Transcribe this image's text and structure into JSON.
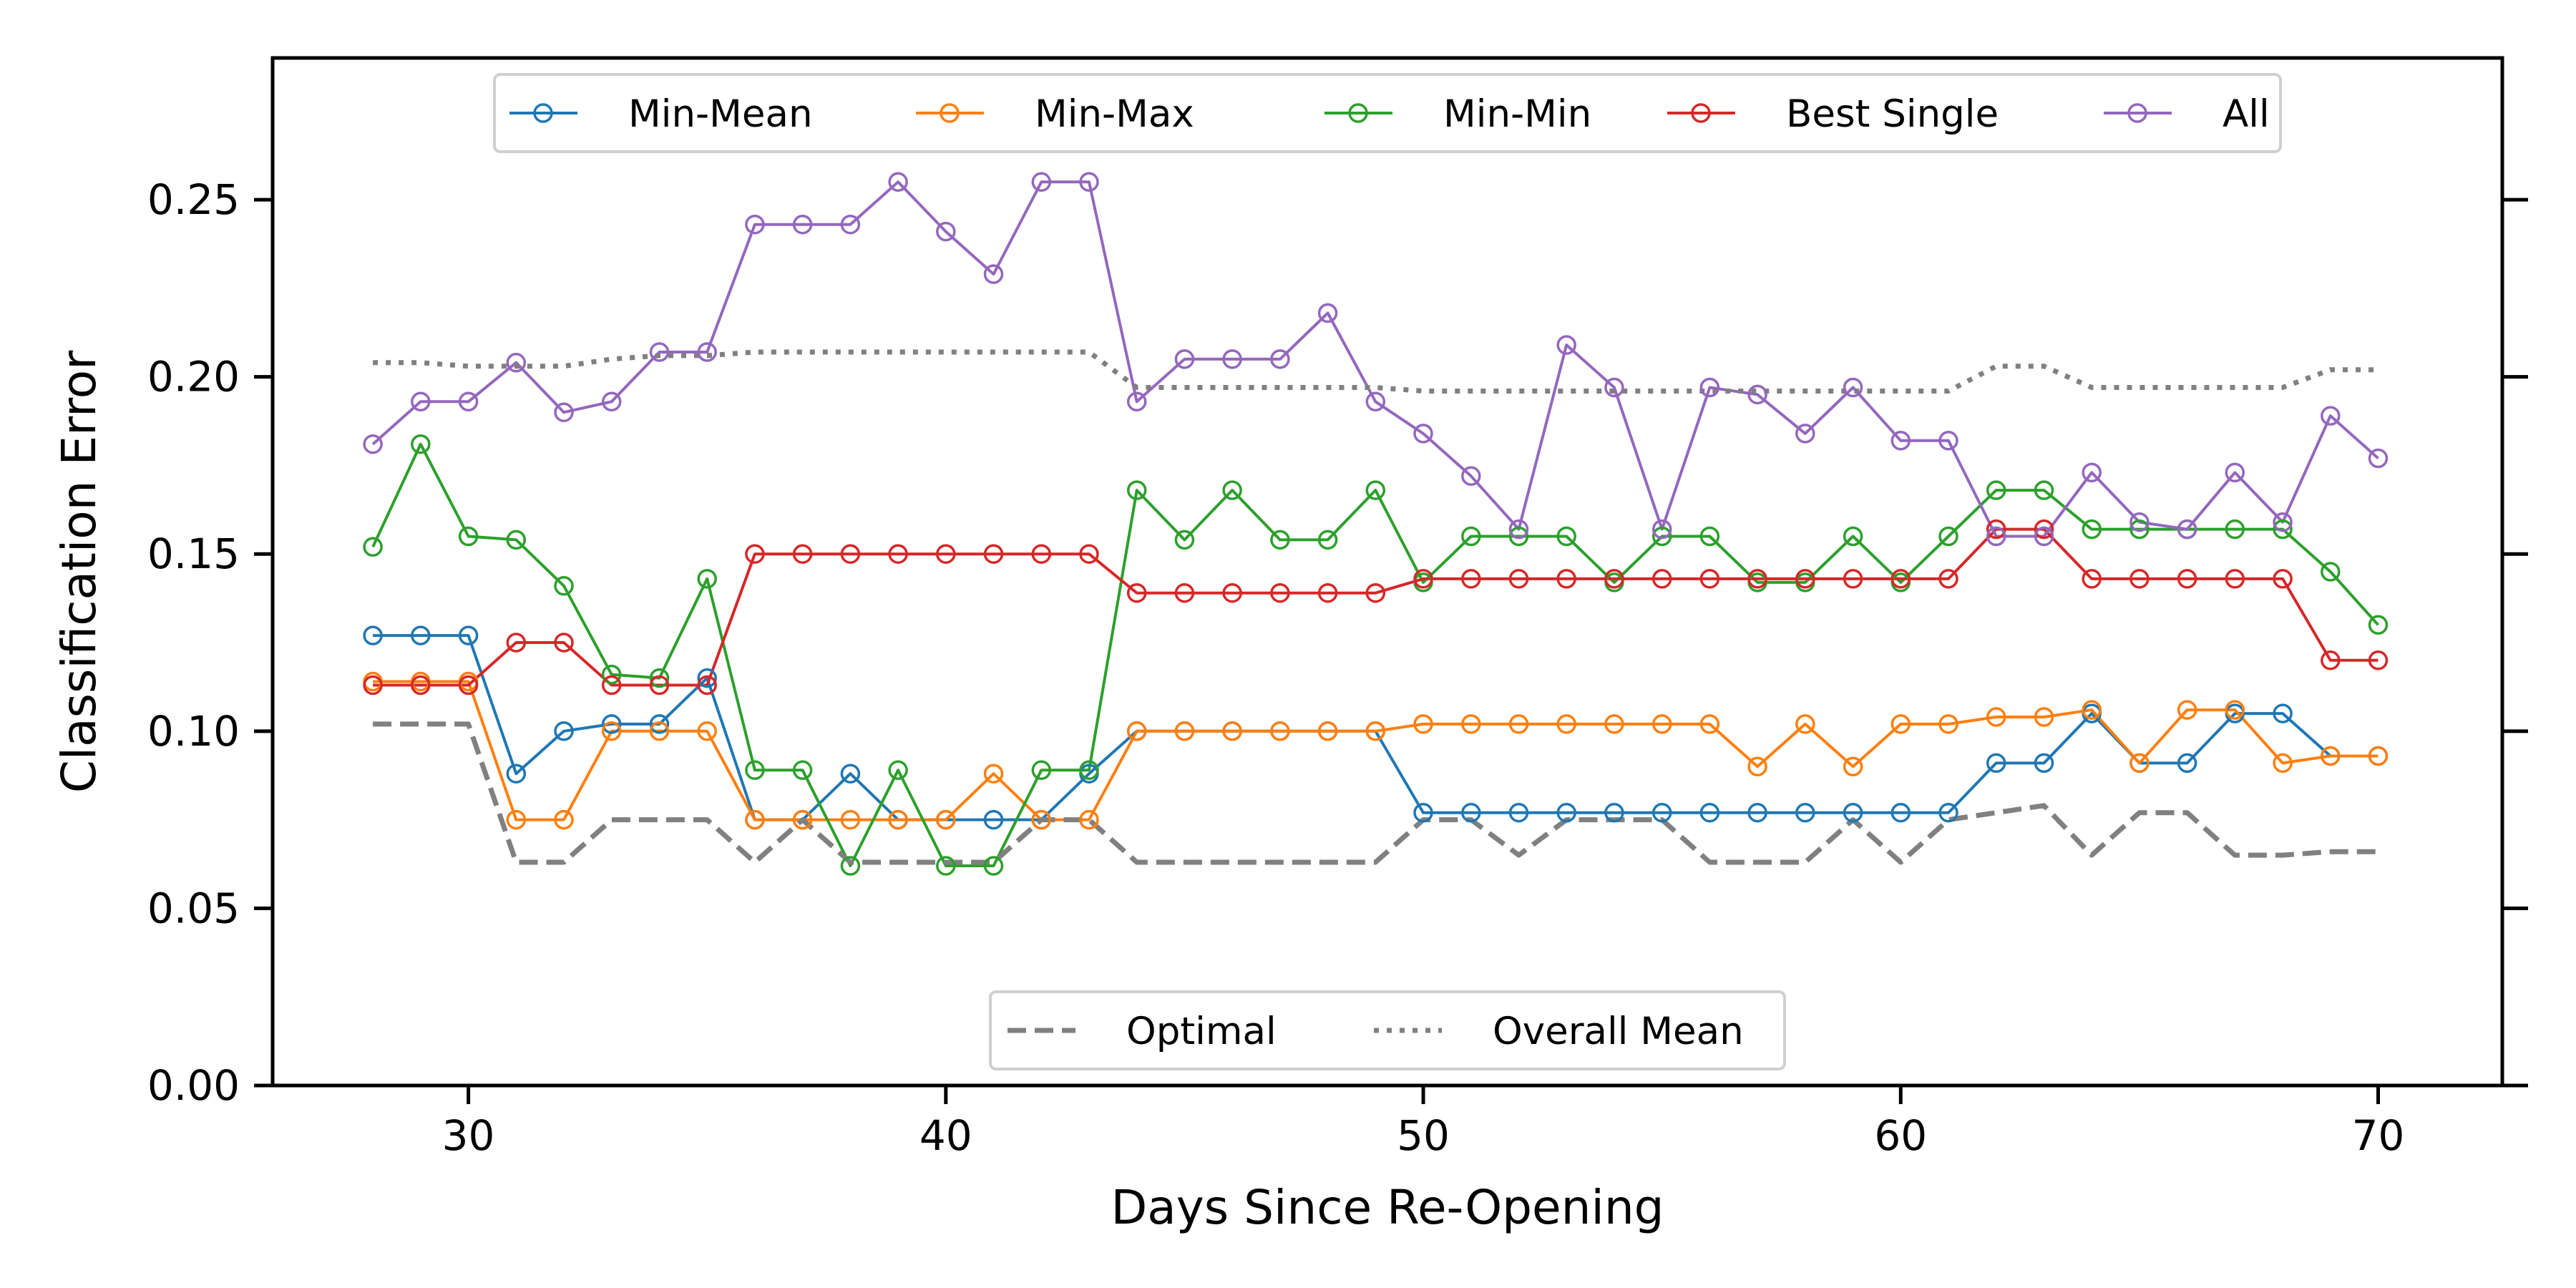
{
  "chart_data": {
    "type": "line",
    "xlabel": "Days Since Re-Opening",
    "ylabel": "Classification Error",
    "xlim": [
      25.9,
      72.6
    ],
    "ylim": [
      0,
      0.29
    ],
    "xticks": [
      30,
      40,
      50,
      60,
      70
    ],
    "yticks": [
      0.0,
      0.05,
      0.1,
      0.15,
      0.2,
      0.25
    ],
    "xtick_labels": [
      "30",
      "40",
      "50",
      "60",
      "70"
    ],
    "ytick_labels": [
      "0.00",
      "0.05",
      "0.10",
      "0.15",
      "0.20",
      "0.25"
    ],
    "grid": false,
    "legend_top": {
      "placement": "top-center",
      "entries": [
        "Min-Mean",
        "Min-Max",
        "Min-Min",
        "Best Single",
        "All"
      ]
    },
    "legend_bottom": {
      "placement": "bottom-center",
      "entries": [
        "Optimal",
        "Overall Mean"
      ]
    },
    "x": [
      28,
      29,
      30,
      31,
      32,
      33,
      34,
      35,
      36,
      37,
      38,
      39,
      40,
      41,
      42,
      43,
      44,
      45,
      46,
      47,
      48,
      49,
      50,
      51,
      52,
      53,
      54,
      55,
      56,
      57,
      58,
      59,
      60,
      61,
      62,
      63,
      64,
      65,
      66,
      67,
      68,
      69,
      70
    ],
    "series": [
      {
        "name": "Min-Mean",
        "color": "#1f77b4",
        "style": "solid-marker",
        "values": [
          0.127,
          0.127,
          0.127,
          0.088,
          0.1,
          0.102,
          0.102,
          0.115,
          0.075,
          0.075,
          0.088,
          0.075,
          0.075,
          0.075,
          0.075,
          0.088,
          0.1,
          0.1,
          0.1,
          0.1,
          0.1,
          0.1,
          0.077,
          0.077,
          0.077,
          0.077,
          0.077,
          0.077,
          0.077,
          0.077,
          0.077,
          0.077,
          0.077,
          0.077,
          0.091,
          0.091,
          0.105,
          0.091,
          0.091,
          0.105,
          0.105,
          0.093,
          0.093
        ]
      },
      {
        "name": "Min-Max",
        "color": "#ff7f0e",
        "style": "solid-marker",
        "values": [
          0.114,
          0.114,
          0.114,
          0.075,
          0.075,
          0.1,
          0.1,
          0.1,
          0.075,
          0.075,
          0.075,
          0.075,
          0.075,
          0.088,
          0.075,
          0.075,
          0.1,
          0.1,
          0.1,
          0.1,
          0.1,
          0.1,
          0.102,
          0.102,
          0.102,
          0.102,
          0.102,
          0.102,
          0.102,
          0.09,
          0.102,
          0.09,
          0.102,
          0.102,
          0.104,
          0.104,
          0.106,
          0.091,
          0.106,
          0.106,
          0.091,
          0.093,
          0.093
        ]
      },
      {
        "name": "Min-Min",
        "color": "#2ca02c",
        "style": "solid-marker",
        "values": [
          0.152,
          0.181,
          0.155,
          0.154,
          0.141,
          0.116,
          0.115,
          0.143,
          0.089,
          0.089,
          0.062,
          0.089,
          0.062,
          0.062,
          0.089,
          0.089,
          0.168,
          0.154,
          0.168,
          0.154,
          0.154,
          0.168,
          0.142,
          0.155,
          0.155,
          0.155,
          0.142,
          0.155,
          0.155,
          0.142,
          0.142,
          0.155,
          0.142,
          0.155,
          0.168,
          0.168,
          0.157,
          0.157,
          0.157,
          0.157,
          0.157,
          0.145,
          0.13
        ]
      },
      {
        "name": "Best Single",
        "color": "#d62728",
        "style": "solid-marker",
        "values": [
          0.113,
          0.113,
          0.113,
          0.125,
          0.125,
          0.113,
          0.113,
          0.113,
          0.15,
          0.15,
          0.15,
          0.15,
          0.15,
          0.15,
          0.15,
          0.15,
          0.139,
          0.139,
          0.139,
          0.139,
          0.139,
          0.139,
          0.143,
          0.143,
          0.143,
          0.143,
          0.143,
          0.143,
          0.143,
          0.143,
          0.143,
          0.143,
          0.143,
          0.143,
          0.157,
          0.157,
          0.143,
          0.143,
          0.143,
          0.143,
          0.143,
          0.12,
          0.12
        ]
      },
      {
        "name": "All",
        "color": "#9467bd",
        "style": "solid-marker",
        "values": [
          0.181,
          0.193,
          0.193,
          0.204,
          0.19,
          0.193,
          0.207,
          0.207,
          0.243,
          0.243,
          0.243,
          0.255,
          0.241,
          0.229,
          0.255,
          0.255,
          0.193,
          0.205,
          0.205,
          0.205,
          0.218,
          0.193,
          0.184,
          0.172,
          0.157,
          0.209,
          0.197,
          0.157,
          0.197,
          0.195,
          0.184,
          0.197,
          0.182,
          0.182,
          0.155,
          0.155,
          0.173,
          0.159,
          0.157,
          0.173,
          0.159,
          0.189,
          0.177
        ]
      },
      {
        "name": "Optimal",
        "color": "#808080",
        "style": "dashed",
        "values": [
          0.102,
          0.102,
          0.102,
          0.063,
          0.063,
          0.075,
          0.075,
          0.075,
          0.063,
          0.075,
          0.063,
          0.063,
          0.063,
          0.063,
          0.075,
          0.075,
          0.063,
          0.063,
          0.063,
          0.063,
          0.063,
          0.063,
          0.075,
          0.075,
          0.065,
          0.075,
          0.075,
          0.075,
          0.063,
          0.063,
          0.063,
          0.075,
          0.063,
          0.075,
          0.077,
          0.079,
          0.065,
          0.077,
          0.077,
          0.065,
          0.065,
          0.066,
          0.066
        ]
      },
      {
        "name": "Overall Mean",
        "color": "#808080",
        "style": "dotted",
        "values": [
          0.204,
          0.204,
          0.203,
          0.203,
          0.203,
          0.205,
          0.206,
          0.206,
          0.207,
          0.207,
          0.207,
          0.207,
          0.207,
          0.207,
          0.207,
          0.207,
          0.197,
          0.197,
          0.197,
          0.197,
          0.197,
          0.197,
          0.196,
          0.196,
          0.196,
          0.196,
          0.196,
          0.196,
          0.196,
          0.196,
          0.196,
          0.196,
          0.196,
          0.196,
          0.203,
          0.203,
          0.197,
          0.197,
          0.197,
          0.197,
          0.197,
          0.202,
          0.202
        ]
      }
    ]
  }
}
